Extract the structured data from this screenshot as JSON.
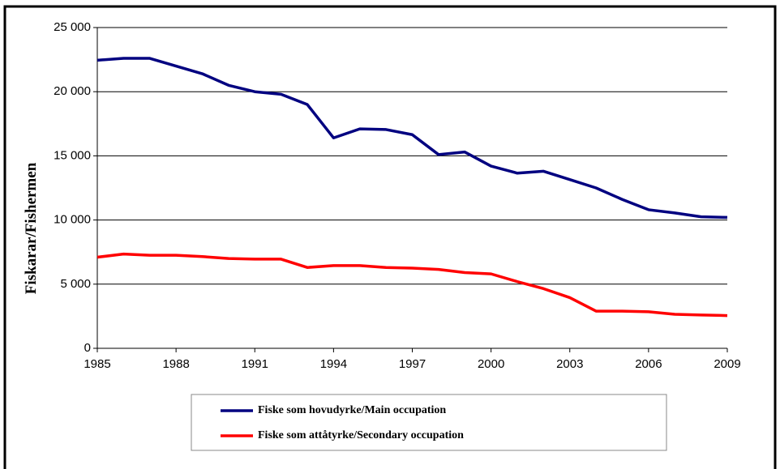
{
  "chart_data": {
    "type": "line",
    "y_label": "Fiskarar/Fishermen",
    "x": [
      1985,
      1986,
      1987,
      1988,
      1989,
      1990,
      1991,
      1992,
      1993,
      1994,
      1995,
      1996,
      1997,
      1998,
      1999,
      2000,
      2001,
      2002,
      2003,
      2004,
      2005,
      2006,
      2007,
      2008,
      2009
    ],
    "series": [
      {
        "name": "Fiske som hovudyrke/Main occupation",
        "color": "#000080",
        "values": [
          22450,
          22600,
          22600,
          22000,
          21400,
          20500,
          20000,
          19800,
          19000,
          16400,
          17100,
          17050,
          16650,
          15100,
          15300,
          14200,
          13650,
          13800,
          13150,
          12500,
          11600,
          10800,
          10550,
          10250,
          10200
        ]
      },
      {
        "name": "Fiske som attåtyrke/Secondary occupation",
        "color": "#ff0000",
        "values": [
          7100,
          7350,
          7250,
          7250,
          7150,
          7000,
          6950,
          6950,
          6300,
          6450,
          6450,
          6300,
          6250,
          6150,
          5900,
          5800,
          5200,
          4650,
          3950,
          2900,
          2900,
          2850,
          2650,
          2600,
          2550
        ]
      }
    ],
    "xlim": [
      1985,
      2009
    ],
    "xticks": [
      1985,
      1988,
      1991,
      1994,
      1997,
      2000,
      2003,
      2006,
      2009
    ],
    "ylim": [
      0,
      25000
    ],
    "yticks": [
      0,
      {
        "value": 5000,
        "label": "5 000"
      },
      {
        "value": 10000,
        "label": "10 000"
      },
      {
        "value": 15000,
        "label": "15 000"
      },
      {
        "value": 20000,
        "label": "20 000"
      },
      {
        "value": 25000,
        "label": "25 000"
      }
    ],
    "grid": true,
    "legend": "bottom"
  }
}
